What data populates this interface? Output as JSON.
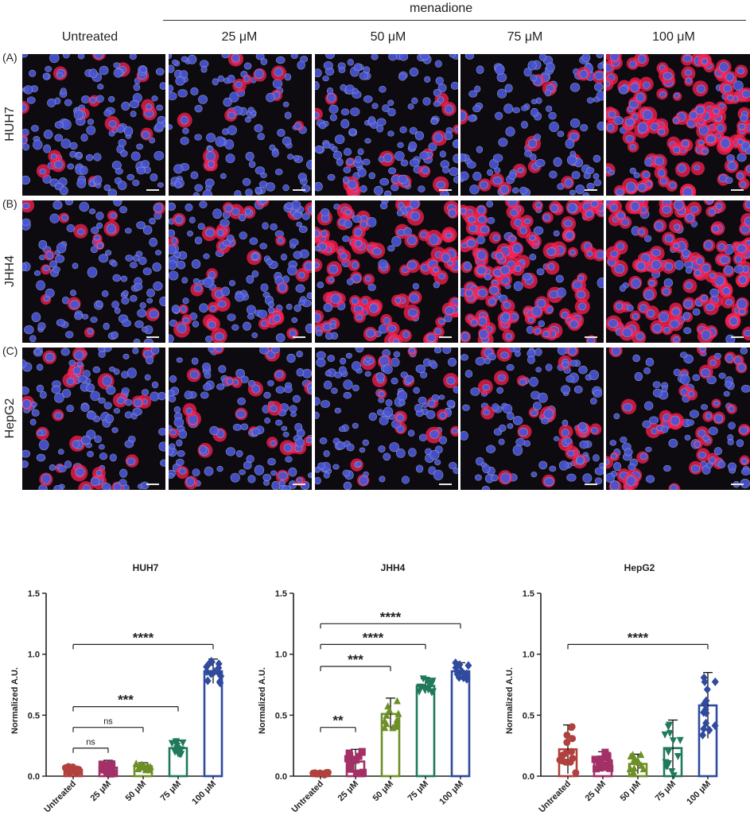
{
  "figure": {
    "group_label": "menadione",
    "columns": [
      "Untreated",
      "25 μM",
      "50 μM",
      "75 μM",
      "100 μM"
    ],
    "rows": [
      {
        "letter": "(A)",
        "cell_line": "HUH7",
        "red_levels": [
          0.12,
          0.08,
          0.06,
          0.12,
          0.85
        ]
      },
      {
        "letter": "(B)",
        "cell_line": "JHH4",
        "red_levels": [
          0.1,
          0.25,
          0.7,
          0.75,
          0.8
        ]
      },
      {
        "letter": "(C)",
        "cell_line": "HepG2",
        "red_levels": [
          0.2,
          0.18,
          0.15,
          0.2,
          0.3
        ]
      }
    ],
    "colors": {
      "nuclei": "#4a56d8",
      "signal": "#ff2050",
      "background": "#0e0b10"
    }
  },
  "chart_data": [
    {
      "type": "bar",
      "title": "HUH7",
      "ylabel": "Normalized A.U.",
      "ylim": [
        0,
        1.5
      ],
      "yticks": [
        "0.0",
        "0.5",
        "1.0",
        "1.5"
      ],
      "categories": [
        "Untreated",
        "25 μM",
        "50 μM",
        "75 μM",
        "100 μM"
      ],
      "values": [
        0.05,
        0.07,
        0.08,
        0.23,
        0.86
      ],
      "errors": [
        0.03,
        0.06,
        0.03,
        0.06,
        0.1
      ],
      "colors": [
        "#b0413e",
        "#a33066",
        "#6e8f26",
        "#1f7a5a",
        "#2f4a9e"
      ],
      "markers": [
        "circle",
        "square",
        "triangle",
        "triangle-down",
        "diamond"
      ],
      "significance": [
        {
          "from": 0,
          "to": 1,
          "label": "ns",
          "y": 0.23
        },
        {
          "from": 0,
          "to": 2,
          "label": "ns",
          "y": 0.4
        },
        {
          "from": 0,
          "to": 3,
          "label": "***",
          "y": 0.57
        },
        {
          "from": 0,
          "to": 4,
          "label": "****",
          "y": 1.08
        }
      ]
    },
    {
      "type": "bar",
      "title": "JHH4",
      "ylabel": "Normalized A.U.",
      "ylim": [
        0,
        1.5
      ],
      "yticks": [
        "0.0",
        "0.5",
        "1.0",
        "1.5"
      ],
      "categories": [
        "Untreated",
        "25 μM",
        "50 μM",
        "75 μM",
        "100 μM"
      ],
      "values": [
        0.02,
        0.12,
        0.51,
        0.74,
        0.86
      ],
      "errors": [
        0.01,
        0.1,
        0.13,
        0.06,
        0.07
      ],
      "colors": [
        "#b0413e",
        "#a33066",
        "#6e8f26",
        "#1f7a5a",
        "#2f4a9e"
      ],
      "markers": [
        "circle",
        "square",
        "triangle",
        "triangle-down",
        "diamond"
      ],
      "significance": [
        {
          "from": 0,
          "to": 1,
          "label": "**",
          "y": 0.4
        },
        {
          "from": 0,
          "to": 2,
          "label": "***",
          "y": 0.9
        },
        {
          "from": 0,
          "to": 3,
          "label": "****",
          "y": 1.08
        },
        {
          "from": 0,
          "to": 4,
          "label": "****",
          "y": 1.25
        }
      ]
    },
    {
      "type": "bar",
      "title": "HepG2",
      "ylabel": "Normalized A.U.",
      "ylim": [
        0,
        1.5
      ],
      "yticks": [
        "0.0",
        "0.5",
        "1.0",
        "1.5"
      ],
      "categories": [
        "Untreated",
        "25 μM",
        "50 μM",
        "75 μM",
        "100 μM"
      ],
      "values": [
        0.22,
        0.13,
        0.1,
        0.23,
        0.58
      ],
      "errors": [
        0.2,
        0.07,
        0.08,
        0.23,
        0.27
      ],
      "colors": [
        "#b0413e",
        "#a33066",
        "#6e8f26",
        "#1f7a5a",
        "#2f4a9e"
      ],
      "markers": [
        "circle",
        "square",
        "triangle",
        "triangle-down",
        "diamond"
      ],
      "significance": [
        {
          "from": 0,
          "to": 4,
          "label": "****",
          "y": 1.08
        }
      ]
    }
  ]
}
